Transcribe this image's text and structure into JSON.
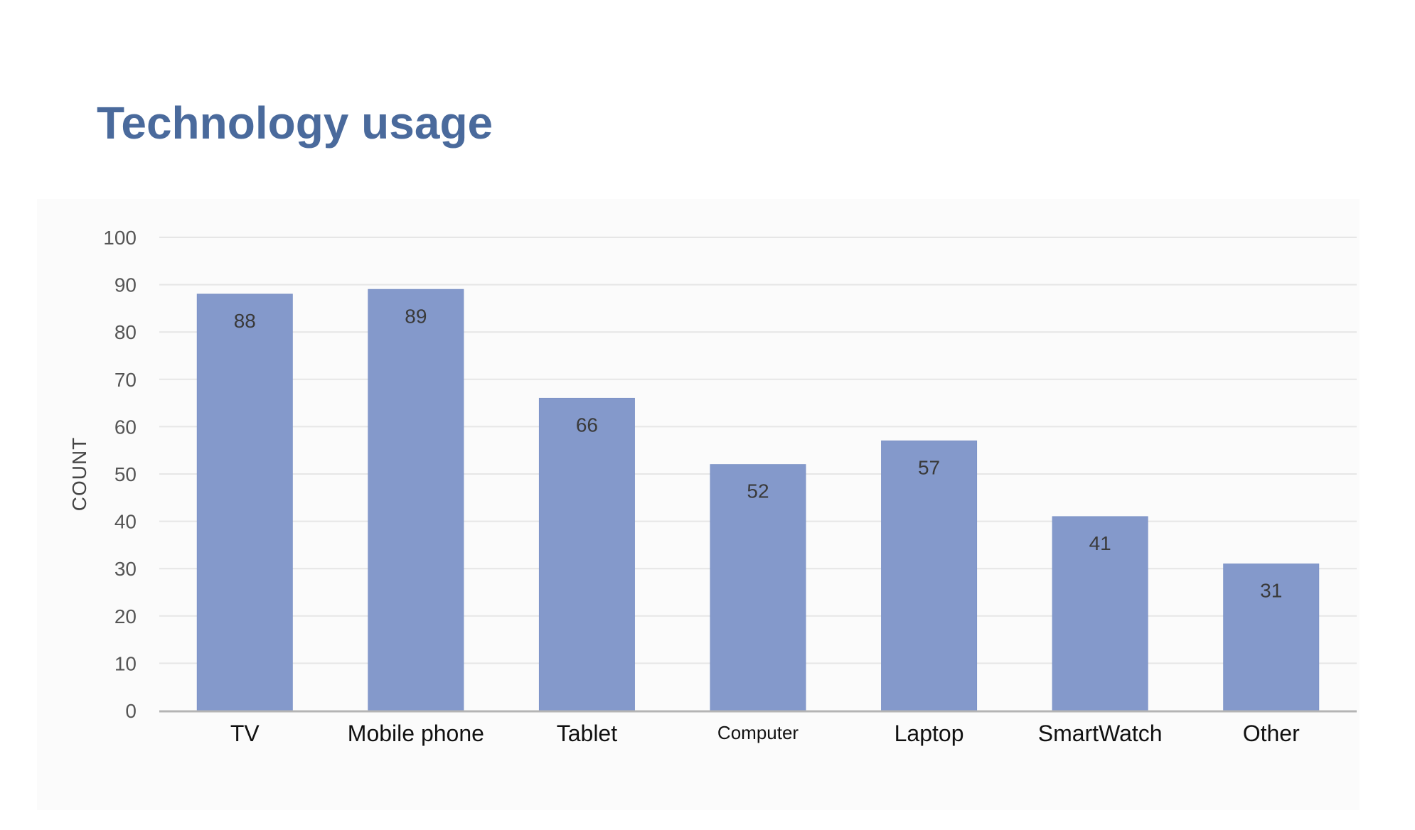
{
  "page": {
    "title": "Technology usage"
  },
  "chart_data": {
    "type": "bar",
    "title": "Technology usage",
    "xlabel": "",
    "ylabel": "COUNT",
    "ylim": [
      0,
      100
    ],
    "ytick_step": 10,
    "yticks": [
      "0",
      "10",
      "20",
      "30",
      "40",
      "50",
      "60",
      "70",
      "80",
      "90",
      "100"
    ],
    "grid": true,
    "legend": "none",
    "categories": [
      "TV",
      "Mobile phone",
      "Tablet",
      "Computer",
      "Laptop",
      "SmartWatch",
      "Other"
    ],
    "values": [
      88,
      89,
      66,
      52,
      57,
      41,
      31
    ],
    "data_labels": [
      "88",
      "89",
      "66",
      "52",
      "57",
      "41",
      "31"
    ],
    "colors": {
      "bar": "#8499cb",
      "bar_edge": "#7e94c7",
      "grid": "#e6e6e6",
      "axis": "#b4b4b4",
      "tick_text": "#555555",
      "category_text": "#111111",
      "data_label_text": "#3a3a3a",
      "title": "#4a6a9c"
    }
  }
}
